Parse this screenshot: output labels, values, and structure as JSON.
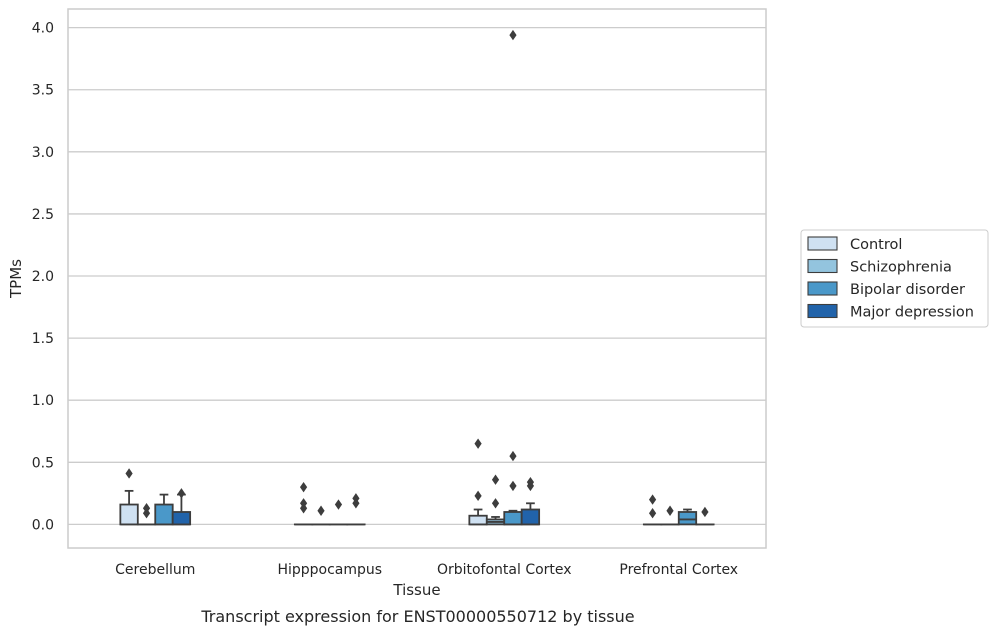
{
  "chart_data": {
    "type": "box",
    "title": "",
    "caption": "Transcript expression for ENST00000550712 by tissue",
    "xlabel": "Tissue",
    "ylabel": "TPMs",
    "ylim": [
      -0.19,
      4.15
    ],
    "yticks": [
      0.0,
      0.5,
      1.0,
      1.5,
      2.0,
      2.5,
      3.0,
      3.5,
      4.0
    ],
    "ytick_labels": [
      "0.0",
      "0.5",
      "1.0",
      "1.5",
      "2.0",
      "2.5",
      "3.0",
      "3.5",
      "4.0"
    ],
    "grid": true,
    "legend_position": "right",
    "categories": [
      "Cerebellum",
      "Hipppocampus",
      "Orbitofontal Cortex",
      "Prefrontal Cortex"
    ],
    "series": [
      {
        "name": "Control",
        "color": "#cfe1f2",
        "boxes": [
          {
            "q1": 0.0,
            "median": 0.0,
            "q3": 0.16,
            "whisker_low": 0.0,
            "whisker_high": 0.27,
            "outliers": [
              0.41
            ]
          },
          {
            "q1": 0.0,
            "median": 0.0,
            "q3": 0.0,
            "whisker_low": 0.0,
            "whisker_high": 0.0,
            "outliers": [
              0.13,
              0.17,
              0.3
            ]
          },
          {
            "q1": 0.0,
            "median": 0.0,
            "q3": 0.07,
            "whisker_low": 0.0,
            "whisker_high": 0.12,
            "outliers": [
              0.23,
              0.65
            ]
          },
          {
            "q1": 0.0,
            "median": 0.0,
            "q3": 0.0,
            "whisker_low": 0.0,
            "whisker_high": 0.0,
            "outliers": [
              0.09,
              0.2
            ]
          }
        ]
      },
      {
        "name": "Schizophrenia",
        "color": "#93c4de",
        "boxes": [
          {
            "q1": 0.0,
            "median": 0.0,
            "q3": 0.0,
            "whisker_low": 0.0,
            "whisker_high": 0.0,
            "outliers": [
              0.09,
              0.13
            ]
          },
          {
            "q1": 0.0,
            "median": 0.0,
            "q3": 0.0,
            "whisker_low": 0.0,
            "whisker_high": 0.0,
            "outliers": [
              0.11
            ]
          },
          {
            "q1": 0.0,
            "median": 0.02,
            "q3": 0.04,
            "whisker_low": 0.0,
            "whisker_high": 0.06,
            "outliers": [
              0.17,
              0.36
            ]
          },
          {
            "q1": 0.0,
            "median": 0.0,
            "q3": 0.0,
            "whisker_low": 0.0,
            "whisker_high": 0.0,
            "outliers": [
              0.11
            ]
          }
        ]
      },
      {
        "name": "Bipolar disorder",
        "color": "#4a98c9",
        "boxes": [
          {
            "q1": 0.0,
            "median": 0.0,
            "q3": 0.16,
            "whisker_low": 0.0,
            "whisker_high": 0.24,
            "outliers": []
          },
          {
            "q1": 0.0,
            "median": 0.0,
            "q3": 0.0,
            "whisker_low": 0.0,
            "whisker_high": 0.0,
            "outliers": [
              0.16
            ]
          },
          {
            "q1": 0.0,
            "median": 0.0,
            "q3": 0.1,
            "whisker_low": 0.0,
            "whisker_high": 0.11,
            "outliers": [
              0.31,
              0.55,
              3.94
            ]
          },
          {
            "q1": 0.0,
            "median": 0.04,
            "q3": 0.1,
            "whisker_low": 0.0,
            "whisker_high": 0.12,
            "outliers": []
          }
        ]
      },
      {
        "name": "Major depression",
        "color": "#2163aa",
        "boxes": [
          {
            "q1": 0.0,
            "median": 0.0,
            "q3": 0.1,
            "whisker_low": 0.0,
            "whisker_high": 0.24,
            "outliers": [
              0.25
            ]
          },
          {
            "q1": 0.0,
            "median": 0.0,
            "q3": 0.0,
            "whisker_low": 0.0,
            "whisker_high": 0.0,
            "outliers": [
              0.17,
              0.21
            ]
          },
          {
            "q1": 0.0,
            "median": 0.0,
            "q3": 0.12,
            "whisker_low": 0.0,
            "whisker_high": 0.17,
            "outliers": [
              0.31,
              0.34
            ]
          },
          {
            "q1": 0.0,
            "median": 0.0,
            "q3": 0.0,
            "whisker_low": 0.0,
            "whisker_high": 0.0,
            "outliers": [
              0.1
            ]
          }
        ]
      }
    ]
  }
}
